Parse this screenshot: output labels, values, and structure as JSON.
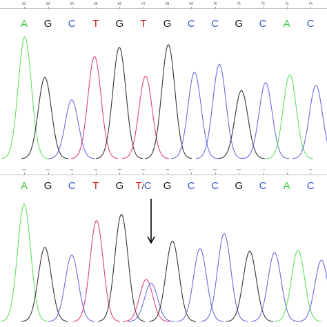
{
  "colors": {
    "A": "#3cc83c",
    "C": "#3a5ac8",
    "G": "#222222",
    "T": "#d42020",
    "A_trace": "#5fe05f",
    "C_trace": "#6a6ae0",
    "G_trace": "#333333",
    "T_trace": "#e0408a"
  },
  "top": {
    "positions": [
      "62",
      "63",
      "64",
      "65",
      "66",
      "67",
      "68",
      "69",
      "70",
      "71",
      "72",
      "73",
      "74"
    ],
    "bases": [
      "A",
      "G",
      "C",
      "T",
      "G",
      "T",
      "G",
      "C",
      "C",
      "G",
      "C",
      "A",
      "C"
    ],
    "peaks": [
      {
        "base": "A",
        "rel": 0.93
      },
      {
        "base": "G",
        "rel": 0.62
      },
      {
        "base": "C",
        "rel": 0.45
      },
      {
        "base": "T",
        "rel": 0.78
      },
      {
        "base": "G",
        "rel": 0.85
      },
      {
        "base": "T",
        "rel": 0.63
      },
      {
        "base": "G",
        "rel": 0.87
      },
      {
        "base": "C",
        "rel": 0.66
      },
      {
        "base": "C",
        "rel": 0.72
      },
      {
        "base": "G",
        "rel": 0.52
      },
      {
        "base": "C",
        "rel": 0.58
      },
      {
        "base": "A",
        "rel": 0.64
      },
      {
        "base": "C",
        "rel": 0.56
      }
    ]
  },
  "bottom": {
    "positions": [
      "60",
      "61",
      "62",
      "63",
      "64",
      "65",
      "66",
      "67",
      "68",
      "69",
      "70",
      "71",
      "72"
    ],
    "bases": [
      "A",
      "G",
      "C",
      "T",
      "G",
      "T/C",
      "G",
      "C",
      "C",
      "G",
      "C",
      "A",
      "C"
    ],
    "peaks": [
      {
        "base": "A",
        "rel": 0.92
      },
      {
        "base": "G",
        "rel": 0.58
      },
      {
        "base": "C",
        "rel": 0.52
      },
      {
        "base": "T",
        "rel": 0.79
      },
      {
        "base": "G",
        "rel": 0.84
      },
      {
        "base": "T",
        "rel": 0.33
      },
      {
        "base": "C",
        "rel": 0.3
      },
      {
        "base": "G",
        "rel": 0.63
      },
      {
        "base": "C",
        "rel": 0.57
      },
      {
        "base": "C",
        "rel": 0.69
      },
      {
        "base": "G",
        "rel": 0.55
      },
      {
        "base": "C",
        "rel": 0.54
      },
      {
        "base": "A",
        "rel": 0.56
      },
      {
        "base": "C",
        "rel": 0.48
      }
    ]
  }
}
